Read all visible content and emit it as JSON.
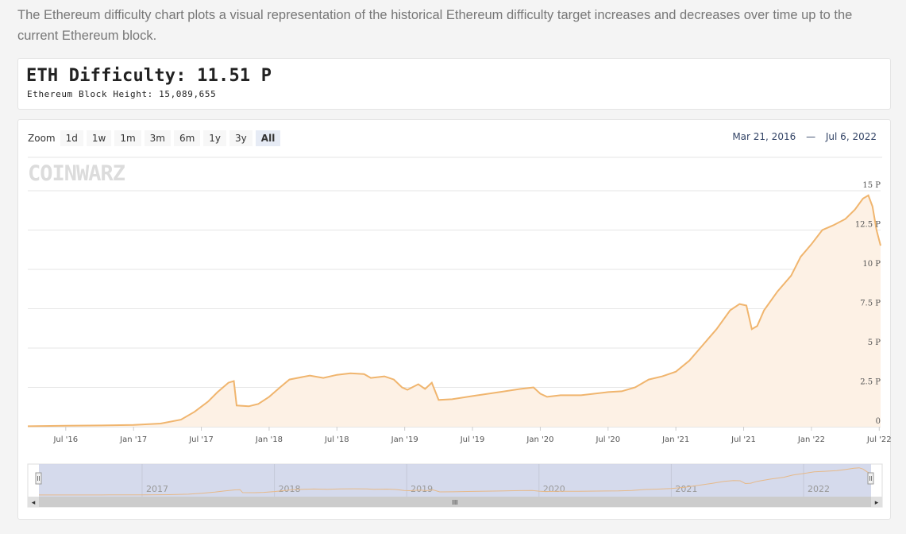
{
  "intro": "The Ethereum difficulty chart plots a visual representation of the historical Ethereum difficulty target increases and decreases over time up to the current Ethereum block.",
  "difficulty": {
    "title": "ETH Difficulty: 11.51 P",
    "subtitle": "Ethereum Block Height: 15,089,655"
  },
  "zoom": {
    "label": "Zoom",
    "buttons": [
      "1d",
      "1w",
      "1m",
      "3m",
      "6m",
      "1y",
      "3y",
      "All"
    ],
    "active": "All"
  },
  "range": {
    "from": "Mar 21, 2016",
    "separator": "—",
    "to": "Jul 6, 2022"
  },
  "watermark": "COINWARZ",
  "navigator": {
    "year_labels": [
      "2017",
      "2018",
      "2019",
      "2020",
      "2021",
      "2022"
    ],
    "scroll_grip": "III",
    "left_arrow": "◂",
    "right_arrow": "▸"
  },
  "colors": {
    "line": "#f0b56e",
    "area": "#fdf1e5",
    "navigator_bg": "#d0d6ea",
    "accent": "#334466"
  },
  "chart_data": {
    "type": "area",
    "title": "ETH Difficulty",
    "series_name": "Difficulty",
    "unit": "P",
    "x_start": 2016.22,
    "x_end": 2022.51,
    "xlim": [
      2016.22,
      2022.51
    ],
    "ylim": [
      0,
      15
    ],
    "y_ticks": [
      0,
      2.5,
      5,
      7.5,
      10,
      12.5,
      15
    ],
    "y_tick_labels": [
      "0",
      "2.5 P",
      "5 P",
      "7.5 P",
      "10 P",
      "12.5 P",
      "15 P"
    ],
    "x_ticks": [
      2016.5,
      2017.0,
      2017.5,
      2018.0,
      2018.5,
      2019.0,
      2019.5,
      2020.0,
      2020.5,
      2021.0,
      2021.5,
      2022.0,
      2022.5
    ],
    "x_tick_labels": [
      "Jul '16",
      "Jan '17",
      "Jul '17",
      "Jan '18",
      "Jul '18",
      "Jan '19",
      "Jul '19",
      "Jan '20",
      "Jul '20",
      "Jan '21",
      "Jul '21",
      "Jan '22",
      "Jul '22"
    ],
    "points": [
      [
        2016.22,
        0.03
      ],
      [
        2016.5,
        0.06
      ],
      [
        2016.75,
        0.08
      ],
      [
        2017.0,
        0.11
      ],
      [
        2017.2,
        0.2
      ],
      [
        2017.35,
        0.45
      ],
      [
        2017.45,
        0.95
      ],
      [
        2017.55,
        1.6
      ],
      [
        2017.62,
        2.2
      ],
      [
        2017.7,
        2.8
      ],
      [
        2017.74,
        2.9
      ],
      [
        2017.76,
        1.35
      ],
      [
        2017.85,
        1.3
      ],
      [
        2017.92,
        1.45
      ],
      [
        2018.0,
        1.9
      ],
      [
        2018.08,
        2.5
      ],
      [
        2018.15,
        3.0
      ],
      [
        2018.3,
        3.25
      ],
      [
        2018.4,
        3.1
      ],
      [
        2018.5,
        3.3
      ],
      [
        2018.6,
        3.4
      ],
      [
        2018.7,
        3.35
      ],
      [
        2018.75,
        3.1
      ],
      [
        2018.85,
        3.2
      ],
      [
        2018.92,
        3.0
      ],
      [
        2018.98,
        2.5
      ],
      [
        2019.02,
        2.35
      ],
      [
        2019.1,
        2.7
      ],
      [
        2019.15,
        2.4
      ],
      [
        2019.2,
        2.8
      ],
      [
        2019.25,
        1.7
      ],
      [
        2019.35,
        1.75
      ],
      [
        2019.5,
        1.95
      ],
      [
        2019.7,
        2.2
      ],
      [
        2019.85,
        2.4
      ],
      [
        2019.95,
        2.5
      ],
      [
        2020.0,
        2.1
      ],
      [
        2020.05,
        1.9
      ],
      [
        2020.15,
        2.0
      ],
      [
        2020.3,
        2.0
      ],
      [
        2020.5,
        2.2
      ],
      [
        2020.6,
        2.25
      ],
      [
        2020.7,
        2.5
      ],
      [
        2020.8,
        3.0
      ],
      [
        2020.9,
        3.2
      ],
      [
        2021.0,
        3.5
      ],
      [
        2021.1,
        4.2
      ],
      [
        2021.2,
        5.2
      ],
      [
        2021.3,
        6.2
      ],
      [
        2021.4,
        7.4
      ],
      [
        2021.47,
        7.8
      ],
      [
        2021.52,
        7.7
      ],
      [
        2021.56,
        6.2
      ],
      [
        2021.6,
        6.4
      ],
      [
        2021.65,
        7.4
      ],
      [
        2021.75,
        8.6
      ],
      [
        2021.85,
        9.6
      ],
      [
        2021.92,
        10.8
      ],
      [
        2022.0,
        11.6
      ],
      [
        2022.08,
        12.5
      ],
      [
        2022.16,
        12.8
      ],
      [
        2022.25,
        13.2
      ],
      [
        2022.32,
        13.8
      ],
      [
        2022.38,
        14.5
      ],
      [
        2022.42,
        14.7
      ],
      [
        2022.45,
        14.0
      ],
      [
        2022.48,
        12.5
      ],
      [
        2022.51,
        11.51
      ]
    ]
  }
}
